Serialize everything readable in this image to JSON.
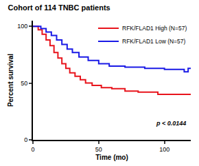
{
  "chart_data": {
    "type": "step",
    "title": "Cohort of 114 TNBC patients",
    "x_label": "Time (mo)",
    "y_label": "Percent survival",
    "annotation": "p < 0.0144",
    "series": [
      {
        "name": "RFK/FLAD1 High (N=57)",
        "color": "#e8141c",
        "x": [
          0,
          4,
          7,
          10,
          13,
          16,
          19,
          22,
          25,
          28,
          32,
          36,
          40,
          45,
          52,
          60,
          70,
          80,
          95,
          120
        ],
        "values": [
          100,
          97,
          93,
          88,
          83,
          77,
          72,
          67,
          63,
          59,
          56,
          53,
          50,
          48,
          46,
          45,
          43,
          42,
          40,
          40
        ]
      },
      {
        "name": "RFK/FLAD1 Low (N=57)",
        "color": "#1a1ae6",
        "x": [
          0,
          6,
          10,
          14,
          18,
          22,
          26,
          30,
          35,
          42,
          50,
          58,
          70,
          85,
          100,
          115,
          118,
          120
        ],
        "values": [
          100,
          98,
          95,
          92,
          88,
          84,
          80,
          77,
          73,
          70,
          67,
          65,
          64,
          63,
          62,
          60,
          63,
          63
        ]
      }
    ],
    "xlim": [
      0,
      120
    ],
    "xticks": [
      0,
      50,
      100
    ],
    "ylim": [
      0,
      105
    ],
    "yticks": [
      0,
      50,
      100
    ],
    "legend": "upper right",
    "grid": false
  }
}
